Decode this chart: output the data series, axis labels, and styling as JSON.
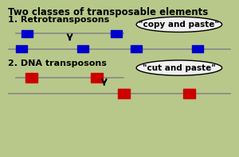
{
  "title": "Two classes of transposable elements",
  "section1": "1. Retrotransposons",
  "section2": "2. DNA transposons",
  "label1": "\"copy and paste\"",
  "label2": "\"cut and paste\"",
  "bg_color": "#b8c88a",
  "inner_bg": "#dde8cc",
  "white_bg": "#f0f0f0",
  "blue": "#0000cc",
  "red": "#cc0000",
  "line_color": "#888888",
  "title_fontsize": 8.5,
  "section_fontsize": 8.0,
  "label_fontsize": 7.5
}
